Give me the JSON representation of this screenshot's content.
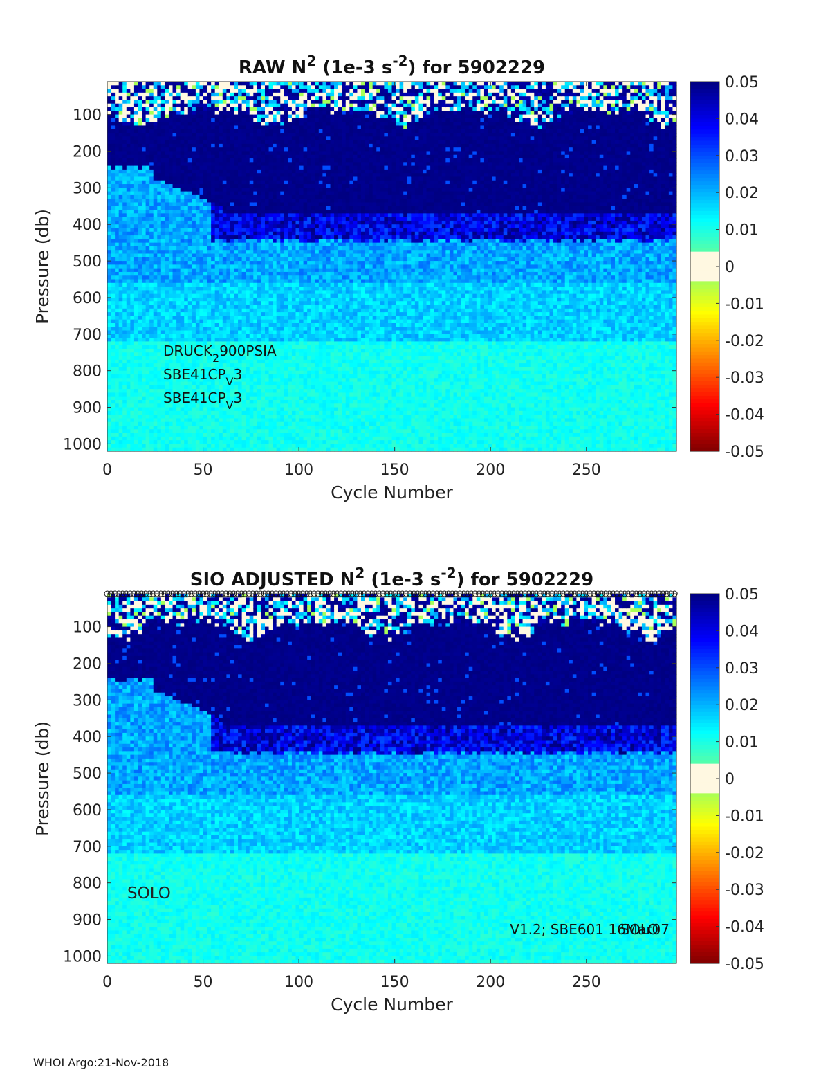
{
  "chart_data": [
    {
      "type": "heatmap",
      "title": {
        "prefix": "RAW N",
        "sup1": "2",
        "mid": " (1e-3 s",
        "sup2": "-2",
        "suffix": ") for 5902229"
      },
      "xlabel": "Cycle Number",
      "ylabel": "Pressure (db)",
      "xlim": [
        0,
        297
      ],
      "ylim": [
        1020,
        10
      ],
      "xticks": [
        0,
        50,
        100,
        150,
        200,
        250
      ],
      "yticks": [
        100,
        200,
        300,
        400,
        500,
        600,
        700,
        800,
        900,
        1000
      ],
      "colorbar": {
        "min": -0.05,
        "max": 0.05,
        "ticks": [
          "0.05",
          "0.04",
          "0.03",
          "0.02",
          "0.01",
          "0",
          "-0.01",
          "-0.02",
          "-0.03",
          "-0.04",
          "-0.05"
        ]
      },
      "field_summary": {
        "surface_layer_db": [
          10,
          90
        ],
        "high_stratification_db": [
          90,
          370
        ],
        "transition_db": [
          370,
          440
        ],
        "low_stratification_db": [
          440,
          1020
        ],
        "low_value_wedge_cycles": [
          0,
          60
        ],
        "low_value_wedge_top_db": 260
      },
      "annotations": [
        {
          "base": "DRUCK",
          "sub": "2",
          "rest": "900PSIA"
        },
        {
          "base": "SBE41CP",
          "sub": "V",
          "rest": "3"
        },
        {
          "base": "SBE41CP",
          "sub": "V",
          "rest": "3"
        }
      ],
      "markers_row": false
    },
    {
      "type": "heatmap",
      "title": {
        "prefix": "SIO  ADJUSTED N",
        "sup1": "2",
        "mid": " (1e-3 s",
        "sup2": "-2",
        "suffix": ") for 5902229"
      },
      "xlabel": "Cycle Number",
      "ylabel": "Pressure (db)",
      "xlim": [
        0,
        297
      ],
      "ylim": [
        1020,
        10
      ],
      "xticks": [
        0,
        50,
        100,
        150,
        200,
        250
      ],
      "yticks": [
        100,
        200,
        300,
        400,
        500,
        600,
        700,
        800,
        900,
        1000
      ],
      "colorbar": {
        "min": -0.05,
        "max": 0.05,
        "ticks": [
          "0.05",
          "0.04",
          "0.03",
          "0.02",
          "0.01",
          "0",
          "-0.01",
          "-0.02",
          "-0.03",
          "-0.04",
          "-0.05"
        ]
      },
      "field_summary": {
        "surface_layer_db": [
          10,
          90
        ],
        "high_stratification_db": [
          90,
          370
        ],
        "transition_db": [
          370,
          440
        ],
        "low_stratification_db": [
          440,
          1020
        ],
        "low_value_wedge_cycles": [
          0,
          60
        ],
        "low_value_wedge_top_db": 260
      },
      "annotations_left": [
        "SOLO"
      ],
      "annotation_right": "V1.2; SBE601 16Mar07",
      "annotation_right_overlay": "SOLO",
      "markers_row": true
    }
  ],
  "footer": "WHOI Argo:21-Nov-2018"
}
